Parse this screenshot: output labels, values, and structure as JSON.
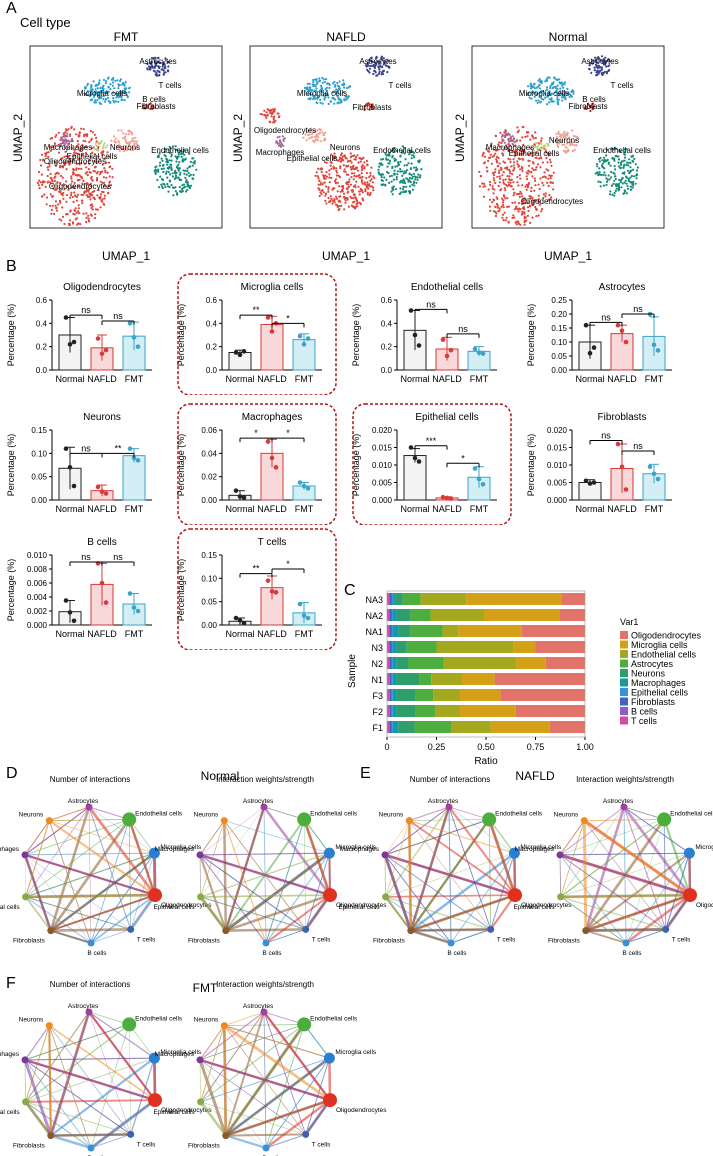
{
  "panels": {
    "A": "A",
    "B": "B",
    "C": "C",
    "D": "D",
    "E": "E",
    "F": "F"
  },
  "panel_a": {
    "subtitle": "Cell type",
    "umaps": [
      {
        "title": "FMT",
        "labels": [
          "Astrocytes",
          "Microglia cells",
          "T cells",
          "B cells",
          "Fibroblasts",
          "Oligodendrocytes",
          "Macrophages",
          "Neurons",
          "Epithelial cells",
          "Endothelial cells",
          "Oligodendrocytes"
        ]
      },
      {
        "title": "NAFLD",
        "labels": [
          "Astrocytes",
          "Microglia cells",
          "T cells",
          "Fibroblasts",
          "Oligodendrocytes",
          "Macrophages",
          "Neurons",
          "Epithelial cells",
          "Endothelial cells"
        ]
      },
      {
        "title": "Normal",
        "labels": [
          "Astrocytes",
          "Microglia cells",
          "T cells",
          "B cells",
          "Fibroblasts",
          "Macrophages",
          "Neurons",
          "Epithelial cells",
          "Endothelial cells",
          "Oligodendrocytes"
        ]
      }
    ],
    "xlabel": "UMAP_1",
    "ylabel": "UMAP_2"
  },
  "colors": {
    "normal": "#222222",
    "nafld": "#d83a3a",
    "fmt": "#3aa5c8",
    "highlight": "#b01515",
    "Oligodendrocytes": "#e3726b",
    "Microglia cells": "#d4a017",
    "Endothelial cells": "#a3a81e",
    "Astrocytes": "#4cae3c",
    "Neurons": "#2f9e6c",
    "Macrophages": "#159a9e",
    "Epithelial cells": "#3c8fd8",
    "Fibroblasts": "#4262c8",
    "B cells": "#8a5ec8",
    "T cells": "#d64aa0"
  },
  "chart_data": [
    {
      "type": "bar",
      "title": "Oligodendrocytes",
      "categories": [
        "Normal",
        "NAFLD",
        "FMT"
      ],
      "values": [
        0.3,
        0.19,
        0.29
      ],
      "errors": [
        0.15,
        0.11,
        0.12
      ],
      "points": [
        [
          0.45,
          0.22,
          0.24
        ],
        [
          0.27,
          0.14,
          0.17
        ],
        [
          0.4,
          0.28,
          0.2
        ]
      ],
      "ylabel": "Percentage (%)",
      "ylim": [
        0,
        0.6
      ],
      "yticks": [
        0.0,
        0.2,
        0.4,
        0.6
      ],
      "yticklabels": [
        "0.0",
        "0.2",
        "0.4",
        "0.6"
      ],
      "sig": [
        {
          "a": 0,
          "b": 1,
          "label": "ns",
          "y": 0.47
        },
        {
          "a": 1,
          "b": 2,
          "label": "ns",
          "y": 0.42
        }
      ],
      "highlight": false
    },
    {
      "type": "bar",
      "title": "Microglia cells",
      "categories": [
        "Normal",
        "NAFLD",
        "FMT"
      ],
      "values": [
        0.15,
        0.39,
        0.26
      ],
      "errors": [
        0.02,
        0.07,
        0.05
      ],
      "points": [
        [
          0.15,
          0.13,
          0.16
        ],
        [
          0.45,
          0.33,
          0.4
        ],
        [
          0.29,
          0.22,
          0.27
        ]
      ],
      "ylabel": "Percentage (%)",
      "ylim": [
        0,
        0.6
      ],
      "yticks": [
        0.0,
        0.2,
        0.4,
        0.6
      ],
      "yticklabels": [
        "0.0",
        "0.2",
        "0.4",
        "0.6"
      ],
      "sig": [
        {
          "a": 0,
          "b": 1,
          "label": "**",
          "y": 0.47
        },
        {
          "a": 1,
          "b": 2,
          "label": "*",
          "y": 0.4
        }
      ],
      "highlight": true
    },
    {
      "type": "bar",
      "title": "Endothelial cells",
      "categories": [
        "Normal",
        "NAFLD",
        "FMT"
      ],
      "values": [
        0.34,
        0.18,
        0.16
      ],
      "errors": [
        0.17,
        0.1,
        0.04
      ],
      "points": [
        [
          0.51,
          0.3,
          0.21
        ],
        [
          0.26,
          0.12,
          0.17
        ],
        [
          0.18,
          0.15,
          0.14
        ]
      ],
      "ylabel": "Percentage (%)",
      "ylim": [
        0,
        0.6
      ],
      "yticks": [
        0.0,
        0.2,
        0.4,
        0.6
      ],
      "yticklabels": [
        "0.0",
        "0.2",
        "0.4",
        "0.6"
      ],
      "sig": [
        {
          "a": 0,
          "b": 1,
          "label": "ns",
          "y": 0.52
        },
        {
          "a": 1,
          "b": 2,
          "label": "ns",
          "y": 0.31
        }
      ],
      "highlight": false
    },
    {
      "type": "bar",
      "title": "Astrocytes",
      "categories": [
        "Normal",
        "NAFLD",
        "FMT"
      ],
      "values": [
        0.1,
        0.13,
        0.12
      ],
      "errors": [
        0.06,
        0.03,
        0.07
      ],
      "points": [
        [
          0.16,
          0.06,
          0.08
        ],
        [
          0.16,
          0.14,
          0.1
        ],
        [
          0.2,
          0.09,
          0.07
        ]
      ],
      "ylabel": "Percentage (%)",
      "ylim": [
        0,
        0.25
      ],
      "yticks": [
        0.0,
        0.05,
        0.1,
        0.15,
        0.2,
        0.25
      ],
      "yticklabels": [
        "0.00",
        "0.05",
        "0.10",
        "0.15",
        "0.20",
        "0.25"
      ],
      "sig": [
        {
          "a": 0,
          "b": 1,
          "label": "ns",
          "y": 0.17
        },
        {
          "a": 1,
          "b": 2,
          "label": "ns",
          "y": 0.2
        }
      ],
      "highlight": false
    },
    {
      "type": "bar",
      "title": "Neurons",
      "categories": [
        "Normal",
        "NAFLD",
        "FMT"
      ],
      "values": [
        0.068,
        0.02,
        0.095
      ],
      "errors": [
        0.045,
        0.012,
        0.015
      ],
      "points": [
        [
          0.11,
          0.07,
          0.03
        ],
        [
          0.028,
          0.018,
          0.014
        ],
        [
          0.11,
          0.09,
          0.085
        ]
      ],
      "ylabel": "Percentage (%)",
      "ylim": [
        0,
        0.15
      ],
      "yticks": [
        0.0,
        0.05,
        0.1,
        0.15
      ],
      "yticklabels": [
        "0.00",
        "0.05",
        "0.10",
        "0.15"
      ],
      "sig": [
        {
          "a": 0,
          "b": 1,
          "label": "ns",
          "y": 0.1
        },
        {
          "a": 1,
          "b": 2,
          "label": "**",
          "y": 0.1
        }
      ],
      "highlight": false
    },
    {
      "type": "bar",
      "title": "Macrophages",
      "categories": [
        "Normal",
        "NAFLD",
        "FMT"
      ],
      "values": [
        0.004,
        0.04,
        0.012
      ],
      "errors": [
        0.004,
        0.012,
        0.003
      ],
      "points": [
        [
          0.008,
          0.003,
          0.002
        ],
        [
          0.05,
          0.036,
          0.028
        ],
        [
          0.015,
          0.012,
          0.01
        ]
      ],
      "ylabel": "Percentage (%)",
      "ylim": [
        0,
        0.06
      ],
      "yticks": [
        0.0,
        0.02,
        0.04,
        0.06
      ],
      "yticklabels": [
        "0.00",
        "0.02",
        "0.04",
        "0.06"
      ],
      "sig": [
        {
          "a": 0,
          "b": 1,
          "label": "*",
          "y": 0.053
        },
        {
          "a": 1,
          "b": 2,
          "label": "*",
          "y": 0.053
        }
      ],
      "highlight": true
    },
    {
      "type": "bar",
      "title": "Epithelial cells",
      "categories": [
        "Normal",
        "NAFLD",
        "FMT"
      ],
      "values": [
        0.0127,
        0.0006,
        0.0065
      ],
      "errors": [
        0.002,
        0.0003,
        0.003
      ],
      "points": [
        [
          0.015,
          0.012,
          0.011
        ],
        [
          0.0008,
          0.0006,
          0.0004
        ],
        [
          0.009,
          0.006,
          0.0045
        ]
      ],
      "ylabel": "Percentage (%)",
      "ylim": [
        0,
        0.02
      ],
      "yticks": [
        0.0,
        0.005,
        0.01,
        0.015,
        0.02
      ],
      "yticklabels": [
        "0.000",
        "0.005",
        "0.010",
        "0.015",
        "0.020"
      ],
      "sig": [
        {
          "a": 0,
          "b": 1,
          "label": "***",
          "y": 0.0155
        },
        {
          "a": 1,
          "b": 2,
          "label": "*",
          "y": 0.0105
        }
      ],
      "highlight": true
    },
    {
      "type": "bar",
      "title": "Fibroblasts",
      "categories": [
        "Normal",
        "NAFLD",
        "FMT"
      ],
      "values": [
        0.005,
        0.009,
        0.0075
      ],
      "errors": [
        0.0008,
        0.007,
        0.0027
      ],
      "points": [
        [
          0.0055,
          0.0047,
          0.005
        ],
        [
          0.016,
          0.0095,
          0.003
        ],
        [
          0.0095,
          0.0075,
          0.006
        ]
      ],
      "ylabel": "Percentage (%)",
      "ylim": [
        0,
        0.02
      ],
      "yticks": [
        0.0,
        0.005,
        0.01,
        0.015,
        0.02
      ],
      "yticklabels": [
        "0.000",
        "0.005",
        "0.010",
        "0.015",
        "0.020"
      ],
      "sig": [
        {
          "a": 0,
          "b": 1,
          "label": "ns",
          "y": 0.017
        },
        {
          "a": 1,
          "b": 2,
          "label": "ns",
          "y": 0.014
        }
      ],
      "highlight": false
    },
    {
      "type": "bar",
      "title": "B cells",
      "categories": [
        "Normal",
        "NAFLD",
        "FMT"
      ],
      "values": [
        0.0019,
        0.0058,
        0.003
      ],
      "errors": [
        0.0016,
        0.003,
        0.0015
      ],
      "points": [
        [
          0.0035,
          0.0018,
          0.0006
        ],
        [
          0.0088,
          0.006,
          0.0032
        ],
        [
          0.0045,
          0.0025,
          0.002
        ]
      ],
      "ylabel": "Percentage (%)",
      "ylim": [
        0,
        0.01
      ],
      "yticks": [
        0.0,
        0.002,
        0.004,
        0.006,
        0.008,
        0.01
      ],
      "yticklabels": [
        "0.000",
        "0.002",
        "0.004",
        "0.006",
        "0.008",
        "0.010"
      ],
      "sig": [
        {
          "a": 0,
          "b": 1,
          "label": "ns",
          "y": 0.009
        },
        {
          "a": 1,
          "b": 2,
          "label": "ns",
          "y": 0.009
        }
      ],
      "highlight": false
    },
    {
      "type": "bar",
      "title": "T cells",
      "categories": [
        "Normal",
        "NAFLD",
        "FMT"
      ],
      "values": [
        0.008,
        0.08,
        0.026
      ],
      "errors": [
        0.007,
        0.025,
        0.022
      ],
      "points": [
        [
          0.015,
          0.01,
          0.004
        ],
        [
          0.095,
          0.072,
          0.07
        ],
        [
          0.045,
          0.02,
          0.015
        ]
      ],
      "ylabel": "Percentage (%)",
      "ylim": [
        0,
        0.15
      ],
      "yticks": [
        0.0,
        0.05,
        0.1,
        0.15
      ],
      "yticklabels": [
        "0.00",
        "0.05",
        "0.10",
        "0.15"
      ],
      "sig": [
        {
          "a": 0,
          "b": 1,
          "label": "**",
          "y": 0.11
        },
        {
          "a": 1,
          "b": 2,
          "label": "*",
          "y": 0.12
        }
      ],
      "highlight": true
    },
    {
      "type": "stacked-bar-horizontal",
      "xlabel": "Ratio",
      "ylabel": "Sample",
      "categories": [
        "NA3",
        "NA2",
        "NA1",
        "N3",
        "N2",
        "N1",
        "F3",
        "F2",
        "F1"
      ],
      "xticks": [
        0,
        0.25,
        0.5,
        0.75,
        1.0
      ],
      "xticklabels": [
        "0",
        "0.25",
        "0.50",
        "0.75",
        "1.00"
      ],
      "legend_title": "Var1",
      "series_names": [
        "T cells",
        "B cells",
        "Fibroblasts",
        "Epithelial cells",
        "Macrophages",
        "Neurons",
        "Astrocytes",
        "Endothelial cells",
        "Microglia cells",
        "Oligodendrocytes"
      ],
      "legend_order": [
        "Oligodendrocytes",
        "Microglia cells",
        "Endothelial cells",
        "Astrocytes",
        "Neurons",
        "Macrophages",
        "Epithelial cells",
        "Fibroblasts",
        "B cells",
        "T cells"
      ],
      "rows": [
        [
          0.01,
          0.005,
          0.01,
          0.005,
          0.01,
          0.04,
          0.09,
          0.23,
          0.48,
          0.12
        ],
        [
          0.01,
          0.005,
          0.01,
          0.005,
          0.02,
          0.07,
          0.1,
          0.27,
          0.38,
          0.13
        ],
        [
          0.01,
          0.005,
          0.01,
          0.005,
          0.03,
          0.06,
          0.16,
          0.08,
          0.32,
          0.32
        ],
        [
          0.01,
          0.005,
          0.01,
          0.005,
          0.02,
          0.05,
          0.15,
          0.39,
          0.11,
          0.25
        ],
        [
          0.01,
          0.005,
          0.01,
          0.005,
          0.02,
          0.06,
          0.18,
          0.37,
          0.15,
          0.2
        ],
        [
          0.01,
          0.005,
          0.01,
          0.005,
          0.02,
          0.12,
          0.06,
          0.16,
          0.17,
          0.47
        ],
        [
          0.01,
          0.005,
          0.01,
          0.005,
          0.02,
          0.1,
          0.09,
          0.14,
          0.21,
          0.44
        ],
        [
          0.01,
          0.005,
          0.01,
          0.005,
          0.02,
          0.1,
          0.1,
          0.13,
          0.29,
          0.36
        ],
        [
          0.01,
          0.005,
          0.01,
          0.005,
          0.03,
          0.08,
          0.19,
          0.2,
          0.3,
          0.18
        ]
      ]
    }
  ],
  "networks": {
    "titles": {
      "normal": "Normal",
      "nafld": "NAFLD",
      "fmt": "FMT"
    },
    "left_title": "Number of interactions",
    "right_title": "Interaction weights/strength",
    "nodes": [
      "Astrocytes",
      "Endothelial cells",
      "Microglia cells",
      "Oligodendrocytes",
      "T cells",
      "B cells",
      "Fibroblasts",
      "Epithelial cells",
      "Macrophages",
      "Neurons"
    ]
  }
}
